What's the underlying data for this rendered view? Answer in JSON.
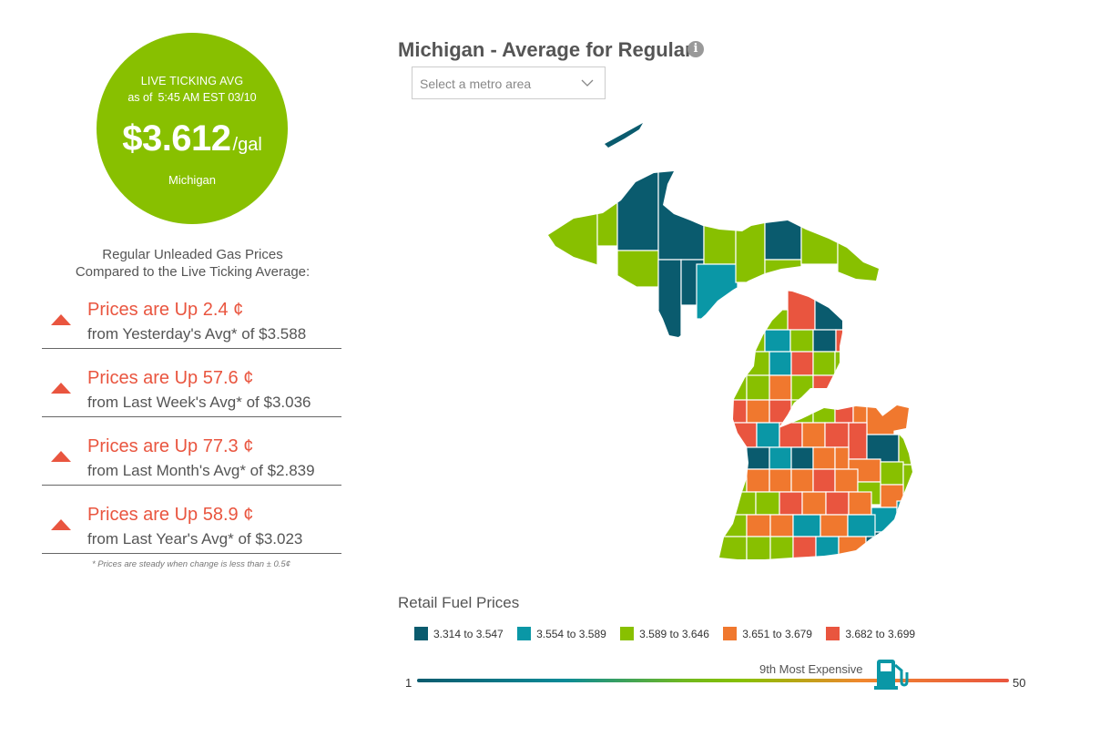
{
  "live": {
    "heading": "LIVE TICKING AVG",
    "as_of_prefix": "as of",
    "as_of_time": "5:45 AM EST 03/10",
    "price": "$3.612",
    "unit": "/gal",
    "region": "Michigan",
    "color": "#88c000"
  },
  "compare": {
    "title_line1": "Regular Unleaded Gas Prices",
    "title_line2": "Compared to the Live Ticking Average:",
    "rows": [
      {
        "change": "Prices are Up 2.4 ¢",
        "from": "from Yesterday's Avg* of $3.588"
      },
      {
        "change": "Prices are Up 57.6 ¢",
        "from": "from Last Week's Avg* of $3.036"
      },
      {
        "change": "Prices are Up 77.3 ¢",
        "from": "from Last Month's Avg* of $2.839"
      },
      {
        "change": "Prices are Up 58.9 ¢",
        "from": "from Last Year's Avg* of $3.023"
      }
    ],
    "footnote": "* Prices are steady when change is less than ± 0.5¢",
    "up_color": "#e9553f"
  },
  "map": {
    "title": "Michigan - Average for Regular",
    "info_icon": "info-icon",
    "metro_placeholder": "Select a metro area",
    "legend_title": "Retail Fuel Prices",
    "legend": [
      {
        "label": "3.314 to 3.547",
        "color": "#0a5b6e"
      },
      {
        "label": "3.554 to 3.589",
        "color": "#0a97a6"
      },
      {
        "label": "3.589 to 3.646",
        "color": "#88c000"
      },
      {
        "label": "3.651 to 3.679",
        "color": "#f0782e"
      },
      {
        "label": "3.682 to 3.699",
        "color": "#e9553f"
      }
    ]
  },
  "rank": {
    "min": "1",
    "max": "50",
    "label": "9th Most Expensive",
    "rank_value": 9,
    "icon": "gas-pump-icon"
  }
}
